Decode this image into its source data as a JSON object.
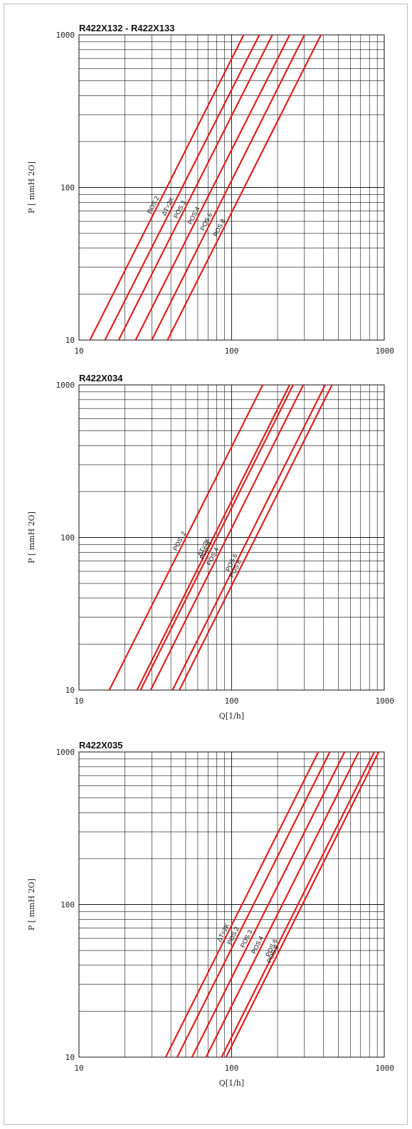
{
  "chart_data": [
    {
      "type": "line",
      "title": "R422X132 - R422X133",
      "ylabel": "P [ mmH  2O]",
      "xlabel": "",
      "x_scale": "log",
      "y_scale": "log",
      "xlim": [
        10,
        1000
      ],
      "ylim": [
        10,
        1000
      ],
      "grid": true,
      "x_ticks": [
        "10",
        "100",
        "1000"
      ],
      "y_ticks": [
        "10",
        "100",
        "1000"
      ],
      "series": [
        {
          "name": "POS.2",
          "x": [
            11.8,
            120
          ],
          "y": [
            10,
            1000
          ]
        },
        {
          "name": "ΔT=2K",
          "x": [
            14.8,
            152
          ],
          "y": [
            10,
            1000
          ]
        },
        {
          "name": "POS.3",
          "x": [
            18.2,
            185
          ],
          "y": [
            10,
            1000
          ]
        },
        {
          "name": "POS.4",
          "x": [
            23.5,
            240
          ],
          "y": [
            10,
            1000
          ]
        },
        {
          "name": "POS.6",
          "x": [
            30,
            300
          ],
          "y": [
            10,
            1000
          ]
        },
        {
          "name": "POS.8",
          "x": [
            38,
            385
          ],
          "y": [
            10,
            1000
          ]
        }
      ]
    },
    {
      "type": "line",
      "title": "R422X034",
      "ylabel": "P [ mmH  2O]",
      "xlabel": "Q[1/h]",
      "x_scale": "log",
      "y_scale": "log",
      "xlim": [
        10,
        1000
      ],
      "ylim": [
        10,
        1000
      ],
      "grid": true,
      "x_ticks": [
        "10",
        "100",
        "1000"
      ],
      "y_ticks": [
        "10",
        "100",
        "1000"
      ],
      "series": [
        {
          "name": "POS. 2",
          "x": [
            15.8,
            160
          ],
          "y": [
            10,
            1000
          ]
        },
        {
          "name": "ΔT=2K",
          "x": [
            24,
            240
          ],
          "y": [
            10,
            1000
          ]
        },
        {
          "name": "POS.3",
          "x": [
            25.3,
            253
          ],
          "y": [
            10,
            1000
          ]
        },
        {
          "name": "POS.4",
          "x": [
            29.5,
            295
          ],
          "y": [
            10,
            1000
          ]
        },
        {
          "name": "POS.6",
          "x": [
            41,
            410
          ],
          "y": [
            10,
            1000
          ]
        },
        {
          "name": "POS.8",
          "x": [
            45.5,
            455
          ],
          "y": [
            10,
            1000
          ]
        }
      ]
    },
    {
      "type": "line",
      "title": "R422X035",
      "ylabel": "P [ mmH  2O]",
      "xlabel": "Q[1/h]",
      "x_scale": "log",
      "y_scale": "log",
      "xlim": [
        10,
        1000
      ],
      "ylim": [
        10,
        1000
      ],
      "grid": true,
      "x_ticks": [
        "10",
        "100",
        "1000"
      ],
      "y_ticks": [
        "10",
        "100",
        "1000"
      ],
      "series": [
        {
          "name": "ΔT=2K",
          "x": [
            37,
            370
          ],
          "y": [
            10,
            1000
          ]
        },
        {
          "name": "POS.2",
          "x": [
            44,
            440
          ],
          "y": [
            10,
            1000
          ]
        },
        {
          "name": "POS.3",
          "x": [
            55,
            550
          ],
          "y": [
            10,
            1000
          ]
        },
        {
          "name": "POS.4",
          "x": [
            68,
            680
          ],
          "y": [
            10,
            1000
          ]
        },
        {
          "name": "POS.6",
          "x": [
            86,
            860
          ],
          "y": [
            10,
            1000
          ]
        },
        {
          "name": "POS.8",
          "x": [
            92,
            920
          ],
          "y": [
            10,
            1000
          ]
        }
      ]
    }
  ],
  "colors": {
    "curve": "#e02020",
    "grid": "#111111",
    "frame": "#bdbdbd"
  }
}
